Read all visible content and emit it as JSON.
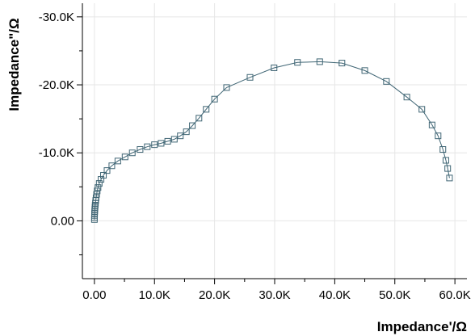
{
  "chart_data": {
    "type": "scatter",
    "xlabel": "Impedance'/Ω",
    "ylabel": "Impedance\"/Ω",
    "xlim": [
      -2000,
      62000
    ],
    "ylim": [
      8500,
      -32000
    ],
    "y_inverted": true,
    "grid": true,
    "marker": "open-square",
    "line": true,
    "colors": {
      "series": "#3f6574",
      "grid": "#e6e6e6",
      "axis": "#000000"
    },
    "x_ticks": [
      {
        "value": 0,
        "label": "0.00"
      },
      {
        "value": 10000,
        "label": "10.0K"
      },
      {
        "value": 20000,
        "label": "20.0K"
      },
      {
        "value": 30000,
        "label": "30.0K"
      },
      {
        "value": 40000,
        "label": "40.0K"
      },
      {
        "value": 50000,
        "label": "50.0K"
      },
      {
        "value": 60000,
        "label": "60.0K"
      }
    ],
    "y_ticks": [
      {
        "value": 0,
        "label": "0.00"
      },
      {
        "value": -10000,
        "label": "-10.0K"
      },
      {
        "value": -20000,
        "label": "-20.0K"
      },
      {
        "value": -30000,
        "label": "-30.0K"
      }
    ],
    "series": [
      {
        "x": [
          0,
          10,
          20,
          30,
          50,
          70,
          100,
          130,
          170,
          220,
          280,
          360,
          460,
          600,
          800,
          1100,
          1500,
          2100,
          2900,
          3900,
          5100,
          6300,
          7600,
          8800,
          10000,
          11100,
          12200,
          13300,
          14300,
          15300,
          16300,
          17400,
          18600,
          20000,
          22000,
          25900,
          29900,
          33800,
          37500,
          41200,
          45000,
          48600,
          52000,
          54500,
          56200,
          57200,
          58000,
          58500,
          58800,
          59100
        ],
        "y": [
          -200,
          -500,
          -800,
          -1100,
          -1400,
          -1700,
          -2000,
          -2300,
          -2600,
          -3000,
          -3400,
          -3900,
          -4400,
          -4900,
          -5500,
          -6100,
          -6700,
          -7400,
          -8100,
          -8800,
          -9400,
          -10000,
          -10500,
          -10900,
          -11200,
          -11400,
          -11700,
          -12000,
          -12500,
          -13100,
          -14000,
          -15100,
          -16400,
          -17900,
          -19600,
          -21100,
          -22500,
          -23300,
          -23400,
          -23200,
          -22100,
          -20500,
          -18200,
          -16400,
          -14100,
          -12500,
          -10500,
          -8900,
          -7700,
          -6300
        ]
      }
    ]
  }
}
